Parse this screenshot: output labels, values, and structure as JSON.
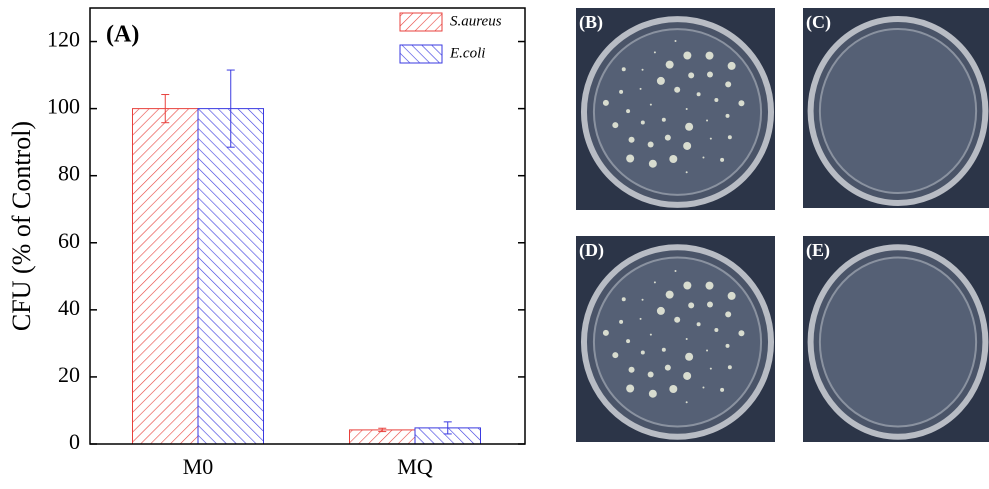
{
  "chart_data": {
    "type": "bar",
    "annotation": "(A)",
    "y_label": "CFU (% of Control)",
    "categories": [
      "M0",
      "MQ"
    ],
    "series": [
      {
        "name": "S.aureus",
        "color": "#e8413c",
        "values": [
          100,
          4.2
        ],
        "errors": [
          4.2,
          0.5
        ]
      },
      {
        "name": "E.coli",
        "color": "#3a3ae0",
        "values": [
          100,
          4.8
        ],
        "errors": [
          11.5,
          1.8
        ]
      }
    ],
    "ylim": [
      0,
      130
    ],
    "yticks": [
      0,
      20,
      40,
      60,
      80,
      100,
      120
    ],
    "legend": "upper right"
  },
  "panels": [
    {
      "label": "(B)"
    },
    {
      "label": "(C)"
    },
    {
      "label": "(D)"
    },
    {
      "label": "(E)"
    }
  ]
}
